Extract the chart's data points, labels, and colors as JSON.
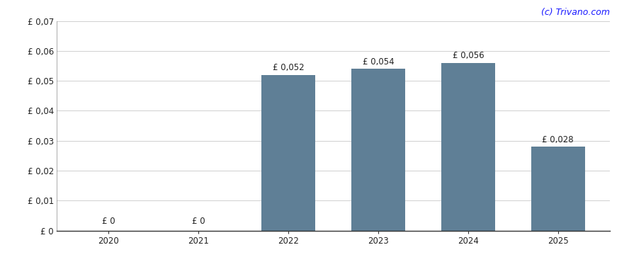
{
  "categories": [
    "2020",
    "2021",
    "2022",
    "2023",
    "2024",
    "2025"
  ],
  "values": [
    0,
    0,
    0.052,
    0.054,
    0.056,
    0.028
  ],
  "labels": [
    "£ 0",
    "£ 0",
    "£ 0,052",
    "£ 0,054",
    "£ 0,056",
    "£ 0,028"
  ],
  "bar_color": "#5f7f96",
  "background_color": "#ffffff",
  "ylim": [
    0,
    0.07
  ],
  "yticks": [
    0,
    0.01,
    0.02,
    0.03,
    0.04,
    0.05,
    0.06,
    0.07
  ],
  "ytick_labels": [
    "£ 0",
    "£ 0,01",
    "£ 0,02",
    "£ 0,03",
    "£ 0,04",
    "£ 0,05",
    "£ 0,06",
    "£ 0,07"
  ],
  "watermark": "(c) Trivano.com",
  "watermark_color": "#1a1aff",
  "grid_color": "#d0d0d0",
  "bar_width": 0.6,
  "label_fontsize": 8.5,
  "tick_fontsize": 8.5
}
